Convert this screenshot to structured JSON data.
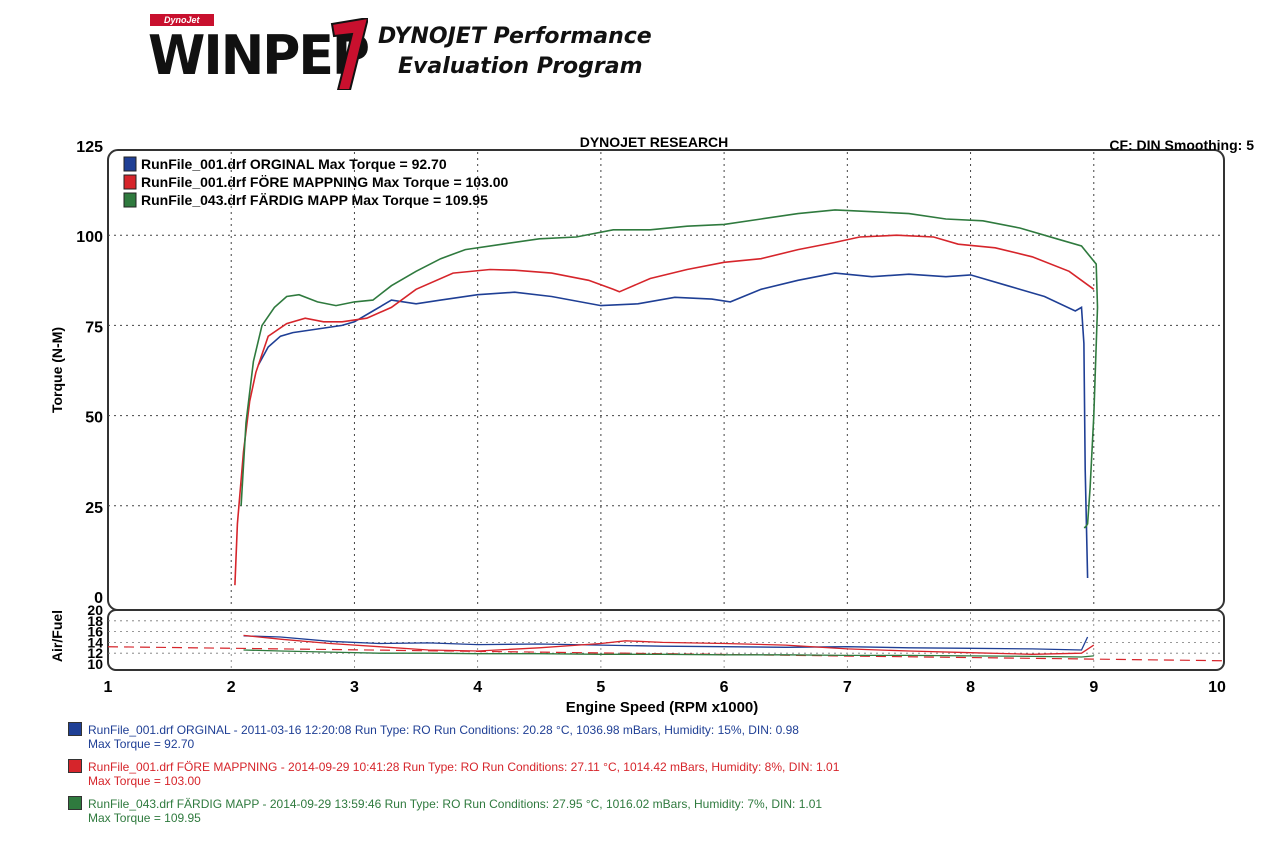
{
  "logo": {
    "small_text": "DynoJet",
    "main_text": "WINPEP",
    "line1": "DYNOJET Performance",
    "line2": "Evaluation Program"
  },
  "colors": {
    "blue": "#1f3f95",
    "red": "#d6252b",
    "green": "#2f7a3e"
  },
  "chart_data": [
    {
      "type": "line",
      "title": "DYNOJET RESEARCH",
      "header_right": "CF: DIN  Smoothing: 5",
      "ylabel": "Torque (N-M)",
      "xlim": [
        1,
        10
      ],
      "ylim": [
        0,
        125
      ],
      "yticks": [
        0,
        25,
        50,
        75,
        100,
        125
      ],
      "grid": true,
      "legend_placement": "top-left",
      "series": [
        {
          "name": "RunFile_001.drf ORGINAL Max Torque = 92.70",
          "color": "#1f3f95",
          "x": [
            2.22,
            2.3,
            2.4,
            2.5,
            2.7,
            2.9,
            3.0,
            3.15,
            3.3,
            3.5,
            3.7,
            4.0,
            4.3,
            4.6,
            5.0,
            5.3,
            5.6,
            5.9,
            6.05,
            6.3,
            6.6,
            6.9,
            7.2,
            7.5,
            7.8,
            8.0,
            8.3,
            8.6,
            8.85,
            8.9,
            8.92,
            8.93,
            8.95
          ],
          "y": [
            64,
            69,
            72,
            73,
            74,
            75,
            76,
            79,
            82,
            81,
            82,
            83.5,
            84.2,
            83,
            80.5,
            81,
            82.8,
            82.3,
            81.5,
            85,
            87.5,
            89.5,
            88.5,
            89.2,
            88.5,
            89,
            86,
            83,
            79,
            80,
            70,
            35,
            5
          ]
        },
        {
          "name": "RunFile_001.drf FÖRE MAPPNING Max Torque = 103.00",
          "color": "#d6252b",
          "x": [
            2.03,
            2.05,
            2.1,
            2.15,
            2.2,
            2.3,
            2.45,
            2.6,
            2.75,
            2.9,
            3.1,
            3.3,
            3.5,
            3.8,
            4.1,
            4.3,
            4.6,
            4.9,
            5.1,
            5.15,
            5.4,
            5.7,
            6.0,
            6.3,
            6.6,
            6.9,
            7.1,
            7.4,
            7.7,
            7.9,
            8.2,
            8.5,
            8.8,
            9.0
          ],
          "y": [
            3,
            20,
            40,
            54,
            62,
            72,
            75.5,
            77,
            76,
            76,
            77,
            80,
            85,
            89.5,
            90.5,
            90.3,
            89.5,
            87.5,
            85,
            84.3,
            88,
            90.5,
            92.5,
            93.5,
            96,
            98,
            99.5,
            100,
            99.5,
            97.5,
            96.5,
            94,
            90,
            85
          ]
        },
        {
          "name": "RunFile_043.drf FÄRDIG MAPP Max Torque = 109.95",
          "color": "#2f7a3e",
          "x": [
            2.08,
            2.12,
            2.18,
            2.25,
            2.35,
            2.45,
            2.55,
            2.7,
            2.85,
            3.0,
            3.15,
            3.3,
            3.5,
            3.7,
            3.9,
            4.2,
            4.5,
            4.8,
            5.1,
            5.4,
            5.7,
            6.0,
            6.3,
            6.6,
            6.9,
            7.2,
            7.5,
            7.8,
            8.1,
            8.4,
            8.7,
            8.9,
            9.02,
            9.03,
            9.0,
            8.97,
            8.95,
            8.93,
            8.92
          ],
          "y": [
            25,
            48,
            65,
            75,
            80,
            83,
            83.5,
            81.5,
            80.5,
            81.5,
            82,
            86,
            90,
            93.5,
            96,
            97.5,
            99,
            99.5,
            101.5,
            101.5,
            102.5,
            103,
            104.5,
            106,
            107,
            106.5,
            106,
            104.5,
            104,
            102,
            99,
            97,
            92,
            80,
            50,
            30,
            20,
            19,
            19
          ]
        }
      ]
    },
    {
      "type": "line",
      "ylabel": "Air/Fuel",
      "xlabel": "Engine Speed (RPM x1000)",
      "xlim": [
        1,
        10
      ],
      "ylim": [
        10,
        20
      ],
      "yticks": [
        10,
        12,
        14,
        16,
        18,
        20
      ],
      "xticks": [
        1,
        2,
        3,
        4,
        5,
        6,
        7,
        8,
        9,
        10
      ],
      "grid": true,
      "reference_line": 13.2,
      "series": [
        {
          "name": "ORGINAL",
          "color": "#1f3f95",
          "x": [
            2.1,
            2.4,
            2.8,
            3.2,
            3.6,
            4.0,
            4.5,
            5.0,
            5.5,
            6.0,
            6.5,
            7.0,
            7.5,
            8.0,
            8.5,
            8.9,
            8.95
          ],
          "y": [
            15.2,
            15.0,
            14.2,
            13.8,
            13.9,
            13.6,
            13.7,
            13.5,
            13.3,
            13.2,
            13.1,
            13.2,
            13.0,
            12.9,
            12.8,
            12.6,
            15
          ]
        },
        {
          "name": "FÖRE MAPPNING",
          "color": "#d6252b",
          "x": [
            2.1,
            2.4,
            2.8,
            3.2,
            3.6,
            4.0,
            4.5,
            5.0,
            5.2,
            5.5,
            6.0,
            6.5,
            7.0,
            7.5,
            8.0,
            8.5,
            8.9,
            9.0
          ],
          "y": [
            15.3,
            14.6,
            13.8,
            13.2,
            12.6,
            12.4,
            13.0,
            13.8,
            14.3,
            14.0,
            13.8,
            13.5,
            12.8,
            12.4,
            12.1,
            11.8,
            12.0,
            13.5
          ]
        },
        {
          "name": "FÄRDIG MAPP",
          "color": "#2f7a3e",
          "x": [
            2.1,
            2.4,
            2.8,
            3.2,
            3.6,
            4.0,
            4.5,
            5.0,
            5.5,
            6.0,
            6.5,
            7.0,
            7.5,
            8.0,
            8.5,
            8.9,
            9.0
          ],
          "y": [
            12.6,
            12.4,
            12.2,
            12.0,
            12.0,
            11.9,
            11.9,
            11.8,
            11.8,
            11.7,
            11.7,
            11.6,
            11.6,
            11.5,
            11.4,
            11.3,
            11.5
          ]
        }
      ]
    }
  ],
  "runs": [
    {
      "color": "#1f3f95",
      "line1": "RunFile_001.drf ORGINAL - 2011-03-16 12:20:08  Run Type: RO  Run Conditions: 20.28 °C, 1036.98 mBars,  Humidity:  15%, DIN: 0.98",
      "line2": "Max Torque = 92.70"
    },
    {
      "color": "#d6252b",
      "line1": "RunFile_001.drf FÖRE MAPPNING - 2014-09-29 10:41:28  Run Type: RO  Run Conditions: 27.11 °C, 1014.42 mBars,  Humidity:  8%, DIN: 1.01",
      "line2": "Max Torque = 103.00"
    },
    {
      "color": "#2f7a3e",
      "line1": "RunFile_043.drf FÄRDIG MAPP - 2014-09-29 13:59:46  Run Type: RO  Run Conditions: 27.95 °C, 1016.02 mBars,  Humidity:  7%, DIN: 1.01",
      "line2": "Max Torque = 109.95"
    }
  ]
}
